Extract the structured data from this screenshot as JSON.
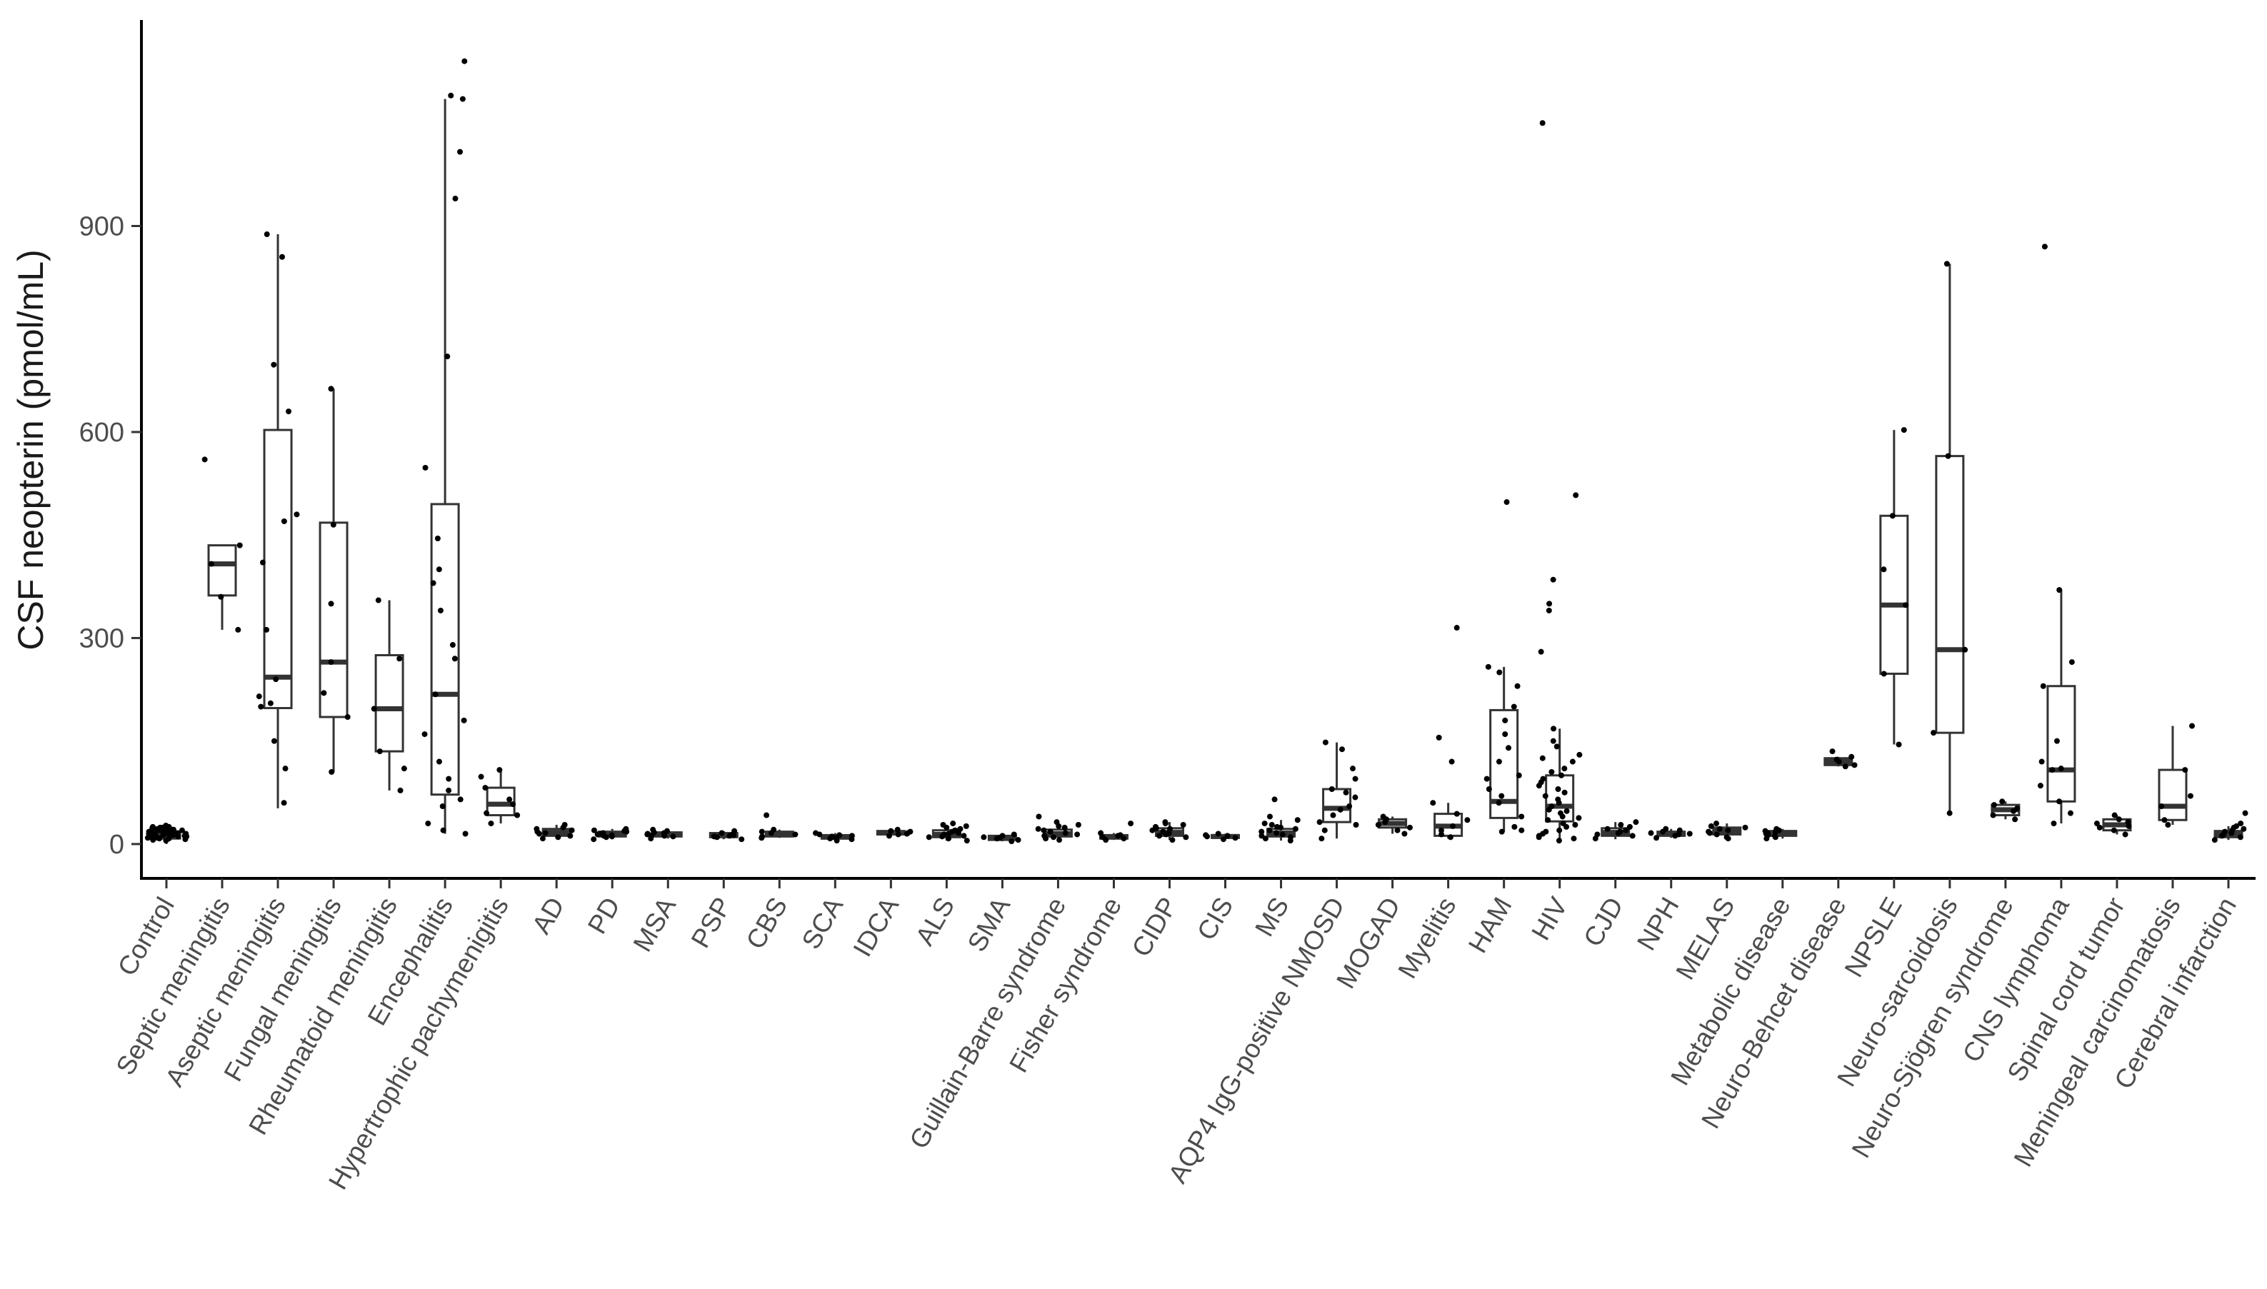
{
  "chart_data": {
    "type": "box",
    "title": "",
    "xlabel": "",
    "ylabel": "CSF neopterin (pmol/mL)",
    "ylim": [
      -50,
      1200
    ],
    "yticks": [
      0,
      300,
      600,
      900
    ],
    "grid": false,
    "legend": "none",
    "categories": [
      "Control",
      "Septic meningitis",
      "Aseptic meningitis",
      "Fungal meningitis",
      "Rheumatoid meningitis",
      "Encephalitis",
      "Hypertrophic pachymenigitis",
      "AD",
      "PD",
      "MSA",
      "PSP",
      "CBS",
      "SCA",
      "IDCA",
      "ALS",
      "SMA",
      "Guillain-Barre syndrome",
      "Fisher syndrome",
      "CIDP",
      "CIS",
      "MS",
      "AQP4 IgG-positive NMOSD",
      "MOGAD",
      "Myelitis",
      "HAM",
      "HIV",
      "CJD",
      "NPH",
      "MELAS",
      "Metabolic disease",
      "Neuro-Behcet disease",
      "NPSLE",
      "Neuro-sarcoidosis",
      "Neuro-Sjögren syndrome",
      "CNS lymphoma",
      "Spinal cord tumor",
      "Meningeal carcinomatosis",
      "Cerebral infarction"
    ],
    "boxes": [
      {
        "q1": 8,
        "median": 13,
        "q3": 18,
        "wlo": 0,
        "whi": 25
      },
      {
        "q1": 362,
        "median": 408,
        "q3": 435,
        "wlo": 312,
        "whi": 435
      },
      {
        "q1": 198,
        "median": 243,
        "q3": 603,
        "wlo": 52,
        "whi": 888
      },
      {
        "q1": 185,
        "median": 265,
        "q3": 468,
        "wlo": 105,
        "whi": 663
      },
      {
        "q1": 135,
        "median": 197,
        "q3": 275,
        "wlo": 78,
        "whi": 355
      },
      {
        "q1": 72,
        "median": 218,
        "q3": 495,
        "wlo": 15,
        "whi": 1085
      },
      {
        "q1": 42,
        "median": 58,
        "q3": 82,
        "wlo": 30,
        "whi": 108
      },
      {
        "q1": 12,
        "median": 17,
        "q3": 22,
        "wlo": 8,
        "whi": 28
      },
      {
        "q1": 11,
        "median": 14,
        "q3": 18,
        "wlo": 7,
        "whi": 22
      },
      {
        "q1": 11,
        "median": 14,
        "q3": 17,
        "wlo": 8,
        "whi": 21
      },
      {
        "q1": 10,
        "median": 13,
        "q3": 16,
        "wlo": 7,
        "whi": 19
      },
      {
        "q1": 11,
        "median": 14,
        "q3": 18,
        "wlo": 9,
        "whi": 21
      },
      {
        "q1": 8,
        "median": 10,
        "q3": 13,
        "wlo": 5,
        "whi": 16
      },
      {
        "q1": 14,
        "median": 16,
        "q3": 19,
        "wlo": 12,
        "whi": 21
      },
      {
        "q1": 10,
        "median": 14,
        "q3": 20,
        "wlo": 5,
        "whi": 28
      },
      {
        "q1": 6,
        "median": 9,
        "q3": 12,
        "wlo": 4,
        "whi": 14
      },
      {
        "q1": 11,
        "median": 15,
        "q3": 21,
        "wlo": 6,
        "whi": 32
      },
      {
        "q1": 8,
        "median": 10,
        "q3": 13,
        "wlo": 6,
        "whi": 16
      },
      {
        "q1": 12,
        "median": 17,
        "q3": 23,
        "wlo": 6,
        "whi": 32
      },
      {
        "q1": 9,
        "median": 11,
        "q3": 13,
        "wlo": 7,
        "whi": 15
      },
      {
        "q1": 11,
        "median": 16,
        "q3": 22,
        "wlo": 5,
        "whi": 35
      },
      {
        "q1": 32,
        "median": 52,
        "q3": 80,
        "wlo": 8,
        "whi": 148
      },
      {
        "q1": 24,
        "median": 30,
        "q3": 36,
        "wlo": 15,
        "whi": 40
      },
      {
        "q1": 12,
        "median": 26,
        "q3": 44,
        "wlo": 8,
        "whi": 60
      },
      {
        "q1": 38,
        "median": 62,
        "q3": 195,
        "wlo": 18,
        "whi": 258
      },
      {
        "q1": 33,
        "median": 55,
        "q3": 100,
        "wlo": 5,
        "whi": 168
      },
      {
        "q1": 12,
        "median": 17,
        "q3": 23,
        "wlo": 7,
        "whi": 32
      },
      {
        "q1": 12,
        "median": 15,
        "q3": 18,
        "wlo": 9,
        "whi": 22
      },
      {
        "q1": 14,
        "median": 19,
        "q3": 24,
        "wlo": 8,
        "whi": 30
      },
      {
        "q1": 12,
        "median": 15,
        "q3": 19,
        "wlo": 8,
        "whi": 22
      },
      {
        "q1": 115,
        "median": 120,
        "q3": 125,
        "wlo": 113,
        "whi": 127
      },
      {
        "q1": 248,
        "median": 348,
        "q3": 478,
        "wlo": 145,
        "whi": 603
      },
      {
        "q1": 162,
        "median": 283,
        "q3": 565,
        "wlo": 45,
        "whi": 845
      },
      {
        "q1": 42,
        "median": 50,
        "q3": 57,
        "wlo": 36,
        "whi": 62
      },
      {
        "q1": 62,
        "median": 108,
        "q3": 230,
        "wlo": 30,
        "whi": 370
      },
      {
        "q1": 20,
        "median": 28,
        "q3": 36,
        "wlo": 14,
        "whi": 42
      },
      {
        "q1": 35,
        "median": 55,
        "q3": 108,
        "wlo": 28,
        "whi": 172
      },
      {
        "q1": 10,
        "median": 14,
        "q3": 19,
        "wlo": 6,
        "whi": 26
      }
    ],
    "points": [
      [
        5,
        8,
        10,
        12,
        14,
        16,
        18,
        20,
        22,
        24,
        9,
        11,
        13,
        15,
        17,
        19,
        21,
        23,
        25,
        27,
        6,
        9,
        12,
        15,
        18,
        21,
        7,
        10,
        13,
        16,
        19,
        22,
        25,
        11,
        14,
        17,
        20,
        8,
        12,
        16,
        20,
        24
      ],
      [
        560,
        435,
        408,
        312,
        360
      ],
      [
        888,
        855,
        698,
        630,
        470,
        410,
        312,
        240,
        200,
        215,
        150,
        110,
        60,
        480,
        205
      ],
      [
        663,
        465,
        265,
        185,
        105,
        350,
        220
      ],
      [
        355,
        270,
        197,
        135,
        78,
        110
      ],
      [
        1140,
        1085,
        1008,
        940,
        1090,
        710,
        548,
        445,
        400,
        380,
        340,
        290,
        270,
        218,
        180,
        160,
        120,
        78,
        55,
        30,
        15,
        20,
        65,
        95
      ],
      [
        108,
        82,
        58,
        42,
        30,
        98,
        45,
        65
      ],
      [
        28,
        24,
        20,
        16,
        12,
        8,
        18,
        15,
        22,
        10
      ],
      [
        22,
        18,
        14,
        11,
        7,
        16,
        13,
        20,
        10,
        15,
        12,
        19
      ],
      [
        21,
        17,
        14,
        11,
        8,
        16,
        13,
        19,
        12,
        15
      ],
      [
        19,
        16,
        13,
        10,
        7,
        14,
        12,
        11
      ],
      [
        21,
        18,
        14,
        11,
        9,
        42,
        16
      ],
      [
        16,
        13,
        10,
        8,
        5,
        12,
        9,
        11,
        14,
        7
      ],
      [
        21,
        19,
        16,
        14,
        12,
        18,
        15
      ],
      [
        28,
        24,
        20,
        16,
        12,
        8,
        5,
        18,
        22,
        14,
        10,
        26,
        15,
        30,
        11,
        19
      ],
      [
        14,
        12,
        9,
        6,
        4,
        10,
        8
      ],
      [
        32,
        28,
        24,
        20,
        16,
        12,
        8,
        6,
        18,
        22,
        14,
        26,
        40,
        10
      ],
      [
        16,
        13,
        10,
        8,
        6,
        30,
        12
      ],
      [
        32,
        28,
        23,
        18,
        14,
        10,
        6,
        20,
        25,
        16,
        12,
        30,
        22
      ],
      [
        15,
        13,
        11,
        9,
        7,
        12
      ],
      [
        35,
        30,
        25,
        20,
        16,
        12,
        8,
        5,
        22,
        18,
        14,
        28,
        65,
        40,
        10,
        24
      ],
      [
        148,
        138,
        110,
        95,
        80,
        68,
        55,
        42,
        32,
        20,
        8,
        75,
        50,
        28
      ],
      [
        40,
        36,
        32,
        28,
        24,
        20,
        15
      ],
      [
        315,
        155,
        120,
        60,
        44,
        35,
        26,
        20,
        14,
        10
      ],
      [
        498,
        258,
        250,
        230,
        200,
        180,
        160,
        140,
        120,
        95,
        80,
        60,
        40,
        25,
        20,
        18,
        100,
        70
      ],
      [
        1050,
        508,
        385,
        350,
        340,
        280,
        168,
        150,
        130,
        120,
        110,
        100,
        90,
        80,
        70,
        60,
        55,
        50,
        45,
        40,
        35,
        30,
        25,
        20,
        15,
        10,
        5,
        65,
        85,
        75,
        95,
        125,
        105,
        142,
        48,
        38,
        28,
        18,
        12,
        8
      ],
      [
        32,
        25,
        20,
        16,
        12,
        8,
        22,
        18,
        14,
        28
      ],
      [
        22,
        18,
        15,
        12,
        9,
        14,
        20,
        16
      ],
      [
        30,
        26,
        22,
        18,
        14,
        10,
        8,
        20,
        24,
        16
      ],
      [
        22,
        19,
        16,
        13,
        10,
        8,
        18,
        15,
        20,
        12
      ],
      [
        127,
        123,
        120,
        115,
        113,
        135
      ],
      [
        603,
        478,
        400,
        348,
        248,
        145
      ],
      [
        845,
        565,
        283,
        162,
        45
      ],
      [
        62,
        57,
        52,
        48,
        42,
        36
      ],
      [
        870,
        370,
        265,
        230,
        150,
        108,
        85,
        62,
        45,
        30,
        120,
        110
      ],
      [
        42,
        36,
        30,
        26,
        20,
        14,
        32,
        24
      ],
      [
        172,
        108,
        70,
        55,
        35,
        28
      ],
      [
        45,
        26,
        22,
        18,
        14,
        10,
        6,
        30,
        16,
        20,
        12,
        24
      ]
    ]
  }
}
